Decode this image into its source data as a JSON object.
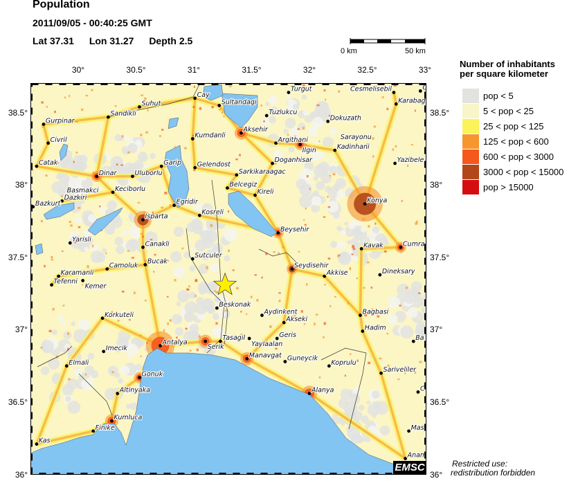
{
  "header": {
    "title": "Population",
    "datetime": "2011/09/05 - 00:40:25 GMT",
    "lat_label": "Lat 37.31",
    "lon_label": "Lon  31.27",
    "depth_label": "Depth  2.5"
  },
  "scale_bar": {
    "start_label": "0 km",
    "end_label": "50 km"
  },
  "map": {
    "extent": {
      "lon_min": 29.587,
      "lon_max": 33.012,
      "lat_min": 35.998,
      "lat_max": 38.705
    },
    "lon_ticks": [
      {
        "value": 30,
        "label": "30°"
      },
      {
        "value": 30.5,
        "label": "30.5°"
      },
      {
        "value": 31,
        "label": "31°"
      },
      {
        "value": 31.5,
        "label": "31.5°"
      },
      {
        "value": 32,
        "label": "32°"
      },
      {
        "value": 32.5,
        "label": "32.5°"
      },
      {
        "value": 33,
        "label": "33°"
      }
    ],
    "lat_ticks": [
      {
        "value": 38.5,
        "label": "38.5°"
      },
      {
        "value": 38,
        "label": "38°"
      },
      {
        "value": 37.5,
        "label": "37.5°"
      },
      {
        "value": 37,
        "label": "37°"
      },
      {
        "value": 36.5,
        "label": "36.5°"
      },
      {
        "value": 36,
        "label": "36°"
      }
    ],
    "colors": {
      "land": "#fbf6c4",
      "water": "#82c4f2",
      "epicenter": "#ffee00"
    },
    "epicenter": {
      "lat": 37.31,
      "lon": 31.27,
      "icon": "star-icon"
    },
    "cities": [
      {
        "name": "Cay",
        "lat": 38.6,
        "lon": 31.01
      },
      {
        "name": "Sultandagi",
        "lat": 38.55,
        "lon": 31.22
      },
      {
        "name": "Turgut",
        "lat": 38.64,
        "lon": 31.82
      },
      {
        "name": "Cesmelisebil",
        "lat": 38.64,
        "lon": 32.73
      },
      {
        "name": "C",
        "lat": 38.65,
        "lon": 32.96
      },
      {
        "name": "Karabag",
        "lat": 38.56,
        "lon": 32.75
      },
      {
        "name": "Suhut",
        "lat": 38.54,
        "lon": 30.53
      },
      {
        "name": "Sandikli",
        "lat": 38.47,
        "lon": 30.26
      },
      {
        "name": "Tuzlukcu",
        "lat": 38.48,
        "lon": 31.63
      },
      {
        "name": "Dokuzath",
        "lat": 38.44,
        "lon": 32.16
      },
      {
        "name": "Gurpinar",
        "lat": 38.42,
        "lon": 29.7
      },
      {
        "name": "Aksehir",
        "lat": 38.36,
        "lon": 31.41
      },
      {
        "name": "Argithani",
        "lat": 38.29,
        "lon": 31.71
      },
      {
        "name": "Ilgin",
        "lat": 38.28,
        "lon": 31.92
      },
      {
        "name": "Civril",
        "lat": 38.29,
        "lon": 29.74
      },
      {
        "name": "Sarayonu",
        "lat": 38.29,
        "lon": 32.22,
        "nodot": true
      },
      {
        "name": "Kadinhani",
        "lat": 38.24,
        "lon": 32.22
      },
      {
        "name": "Kumdanli",
        "lat": 38.32,
        "lon": 30.99
      },
      {
        "name": "Yazibele",
        "lat": 38.15,
        "lon": 32.74
      },
      {
        "name": "Doganhisar",
        "lat": 38.15,
        "lon": 31.68
      },
      {
        "name": "Catak",
        "lat": 38.13,
        "lon": 29.64
      },
      {
        "name": "Garip",
        "lat": 38.13,
        "lon": 30.72
      },
      {
        "name": "Gelendost",
        "lat": 38.12,
        "lon": 31.01
      },
      {
        "name": "Sarkikaraagac",
        "lat": 38.07,
        "lon": 31.37
      },
      {
        "name": "Dinar",
        "lat": 38.06,
        "lon": 30.16
      },
      {
        "name": "Uluborlu",
        "lat": 38.06,
        "lon": 30.47
      },
      {
        "name": "Belcegiz",
        "lat": 37.98,
        "lon": 31.29
      },
      {
        "name": "Kireli",
        "lat": 37.93,
        "lon": 31.53
      },
      {
        "name": "Konya",
        "lat": 37.87,
        "lon": 32.48
      },
      {
        "name": "Keciborlu",
        "lat": 37.95,
        "lon": 30.3
      },
      {
        "name": "Basmakci",
        "lat": 37.91,
        "lon": 30.01
      },
      {
        "name": "Dazkiri",
        "lat": 37.89,
        "lon": 29.86
      },
      {
        "name": "Bazkurt",
        "lat": 37.85,
        "lon": 29.61
      },
      {
        "name": "Egridir",
        "lat": 37.86,
        "lon": 30.83
      },
      {
        "name": "Isparta",
        "lat": 37.76,
        "lon": 30.56
      },
      {
        "name": "Kosreli",
        "lat": 37.79,
        "lon": 31.05
      },
      {
        "name": "Beysehir",
        "lat": 37.67,
        "lon": 31.73
      },
      {
        "name": "Yarisli",
        "lat": 37.6,
        "lon": 29.93
      },
      {
        "name": "Canakli",
        "lat": 37.57,
        "lon": 30.56
      },
      {
        "name": "Kavak",
        "lat": 37.56,
        "lon": 32.45
      },
      {
        "name": "Cumra",
        "lat": 37.57,
        "lon": 32.79
      },
      {
        "name": "Sutculer",
        "lat": 37.49,
        "lon": 30.99
      },
      {
        "name": "Bucak",
        "lat": 37.45,
        "lon": 30.58
      },
      {
        "name": "Camoluk",
        "lat": 37.42,
        "lon": 30.25
      },
      {
        "name": "Seydisehir",
        "lat": 37.42,
        "lon": 31.85
      },
      {
        "name": "Karamanli",
        "lat": 37.37,
        "lon": 29.83
      },
      {
        "name": "Kemer",
        "lat": 37.34,
        "lon": 30.04
      },
      {
        "name": "Tefenni",
        "lat": 37.31,
        "lon": 29.77
      },
      {
        "name": "Akkise",
        "lat": 37.37,
        "lon": 32.13
      },
      {
        "name": "Dineksary",
        "lat": 37.38,
        "lon": 32.61
      },
      {
        "name": "Beskonak",
        "lat": 37.15,
        "lon": 31.2
      },
      {
        "name": "Aydinkent",
        "lat": 37.1,
        "lon": 31.59
      },
      {
        "name": "Akseki",
        "lat": 37.05,
        "lon": 31.78
      },
      {
        "name": "Bagbasi",
        "lat": 37.1,
        "lon": 32.44
      },
      {
        "name": "Korkuteli",
        "lat": 37.08,
        "lon": 30.21
      },
      {
        "name": "Hadim",
        "lat": 36.99,
        "lon": 32.46
      },
      {
        "name": "Serik",
        "lat": 36.92,
        "lon": 31.1
      },
      {
        "name": "Tasagil",
        "lat": 36.92,
        "lon": 31.23
      },
      {
        "name": "Yaylaalan",
        "lat": 36.94,
        "lon": 31.48
      },
      {
        "name": "Geris",
        "lat": 36.94,
        "lon": 31.72
      },
      {
        "name": "Ba",
        "lat": 36.92,
        "lon": 32.9
      },
      {
        "name": "Antalya",
        "lat": 36.89,
        "lon": 30.71
      },
      {
        "name": "Manavgat",
        "lat": 36.8,
        "lon": 31.46
      },
      {
        "name": "Imecik",
        "lat": 36.85,
        "lon": 30.22
      },
      {
        "name": "Guneycik",
        "lat": 36.78,
        "lon": 31.79
      },
      {
        "name": "Koprulu",
        "lat": 36.75,
        "lon": 32.17
      },
      {
        "name": "Elmali",
        "lat": 36.75,
        "lon": 29.9
      },
      {
        "name": "Sariveliler",
        "lat": 36.7,
        "lon": 32.62
      },
      {
        "name": "Gonuk",
        "lat": 36.67,
        "lon": 30.53
      },
      {
        "name": "Alanya",
        "lat": 36.56,
        "lon": 32.0
      },
      {
        "name": "C",
        "lat": 36.57,
        "lon": 32.94
      },
      {
        "name": "Altinyaka",
        "lat": 36.56,
        "lon": 30.34
      },
      {
        "name": "Kumluca",
        "lat": 36.37,
        "lon": 30.29
      },
      {
        "name": "Mas",
        "lat": 36.3,
        "lon": 32.86
      },
      {
        "name": "Finike",
        "lat": 36.3,
        "lon": 30.13
      },
      {
        "name": "Kas",
        "lat": 36.21,
        "lon": 29.64
      },
      {
        "name": "Anam",
        "lat": 36.11,
        "lon": 32.83
      }
    ]
  },
  "legend": {
    "title_line1": "Number of inhabitants",
    "title_line2": "per square kilometer",
    "items": [
      {
        "label": "pop < 5",
        "color": "#e2e3e0"
      },
      {
        "label": "5 < pop < 25",
        "color": "#f8f5c8"
      },
      {
        "label": "25 < pop < 125",
        "color": "#fbf35a"
      },
      {
        "label": "125 < pop < 600",
        "color": "#f7952f"
      },
      {
        "label": "600 < pop < 3000",
        "color": "#f6571c"
      },
      {
        "label": "3000 < pop < 15000",
        "color": "#b1471a"
      },
      {
        "label": "pop > 15000",
        "color": "#d60d10"
      }
    ]
  },
  "notice": {
    "line1": "Restricted use:",
    "line2": "redistribution forbidden"
  },
  "logo": {
    "text": "EMSC"
  }
}
